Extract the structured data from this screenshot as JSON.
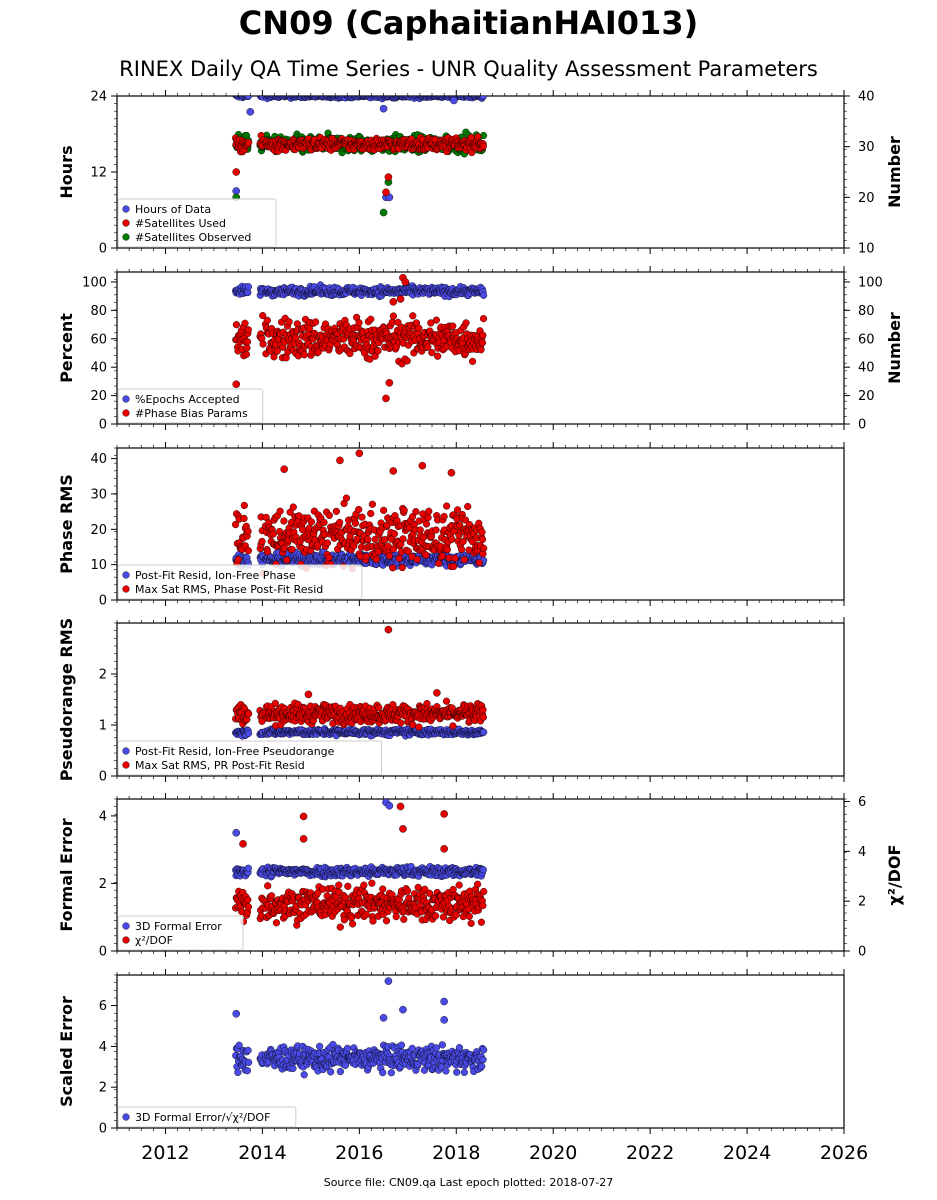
{
  "title": "CN09 (CaphaitianHAI013)",
  "subtitle": "RINEX Daily QA Time Series - UNR Quality Assessment Parameters",
  "footer": "Source file: CN09.qa Last epoch plotted: 2018-07-27",
  "colors": {
    "blue": "#4a4ae6",
    "red": "#e60000",
    "green": "#007a00",
    "edge": "#000000"
  },
  "chart_data": {
    "type": "scatter",
    "x_axis": {
      "range": [
        2011.0,
        2026.0
      ],
      "tick_labels": [
        "2012",
        "2014",
        "2016",
        "2018",
        "2020",
        "2022",
        "2024",
        "2026"
      ],
      "data_start": 2013.45,
      "data_end": 2018.57
    },
    "panels": [
      {
        "id": "hours",
        "ylabel": "Hours",
        "ylim": [
          0,
          24
        ],
        "yticks": [
          "0",
          "12",
          "24"
        ],
        "ylabel_right": "Number",
        "ylim_right": [
          10,
          40
        ],
        "yticks_right": [
          "10",
          "20",
          "30",
          "40"
        ],
        "legend": [
          "Hours of Data",
          "#Satellites Used",
          "#Satellites Observed"
        ],
        "series": [
          {
            "name": "Hours of Data",
            "color": "blue",
            "axis": "left",
            "mean": 24.0,
            "spread": 0.15,
            "outliers": [
              [
                2013.46,
                9.0
              ],
              [
                2013.75,
                21.5
              ],
              [
                2016.5,
                22.0
              ],
              [
                2016.55,
                8.0
              ],
              [
                2016.62,
                8.0
              ],
              [
                2017.95,
                23.3
              ]
            ]
          },
          {
            "name": "#Satellites Observed",
            "color": "green",
            "axis": "right",
            "mean": 30.5,
            "spread": 0.8,
            "outliers": [
              [
                2013.46,
                20.0
              ],
              [
                2016.5,
                17.0
              ],
              [
                2016.6,
                23.0
              ]
            ]
          },
          {
            "name": "#Satellites Used",
            "color": "red",
            "axis": "right",
            "mean": 30.5,
            "spread": 0.6,
            "outliers": [
              [
                2013.46,
                25.0
              ],
              [
                2016.55,
                21.0
              ],
              [
                2016.6,
                24.0
              ]
            ]
          }
        ]
      },
      {
        "id": "percent",
        "ylabel": "Percent",
        "ylim": [
          0,
          107
        ],
        "yticks": [
          "0",
          "20",
          "40",
          "60",
          "80",
          "100"
        ],
        "ylabel_right": "Number",
        "ylim_right": [
          0,
          107
        ],
        "yticks_right": [
          "0",
          "20",
          "40",
          "60",
          "80",
          "100"
        ],
        "legend": [
          "%Epochs Accepted",
          "#Phase Bias Params"
        ],
        "series": [
          {
            "name": "%Epochs Accepted",
            "color": "blue",
            "axis": "left",
            "mean": 93.5,
            "spread": 1.5,
            "outliers": []
          },
          {
            "name": "#Phase Bias Params",
            "color": "red",
            "axis": "right",
            "mean": 60,
            "spread": 7,
            "outliers": [
              [
                2013.46,
                28.0
              ],
              [
                2016.55,
                18.0
              ],
              [
                2016.62,
                29.0
              ],
              [
                2016.9,
                103.0
              ],
              [
                2016.95,
                100.0
              ],
              [
                2016.7,
                86.0
              ],
              [
                2016.85,
                88.0
              ]
            ]
          }
        ]
      },
      {
        "id": "phase",
        "ylabel": "Phase RMS",
        "ylim": [
          0,
          43
        ],
        "yticks": [
          "0",
          "10",
          "20",
          "30",
          "40"
        ],
        "legend": [
          "Post-Fit Resid, Ion-Free Phase",
          "Max Sat RMS, Phase Post-Fit Resid"
        ],
        "series": [
          {
            "name": "Post-Fit Resid, Ion-Free Phase",
            "color": "blue",
            "axis": "left",
            "mean": 11.5,
            "spread": 0.8,
            "outliers": []
          },
          {
            "name": "Max Sat RMS, Phase Post-Fit Resid",
            "color": "red",
            "axis": "left",
            "mean": 18,
            "spread": 4,
            "outliers": [
              [
                2015.6,
                39.5
              ],
              [
                2016.0,
                41.5
              ],
              [
                2014.45,
                37.0
              ],
              [
                2017.3,
                38.0
              ],
              [
                2016.7,
                36.5
              ],
              [
                2017.9,
                36.0
              ]
            ]
          }
        ]
      },
      {
        "id": "pseudorange",
        "ylabel": "Pseudorange RMS",
        "ylim": [
          0,
          3.0
        ],
        "yticks": [
          "0",
          "1",
          "2"
        ],
        "legend": [
          "Post-Fit Resid, Ion-Free Pseudorange",
          "Max Sat RMS, PR Post-Fit Resid"
        ],
        "series": [
          {
            "name": "Post-Fit Resid, Ion-Free Pseudorange",
            "color": "blue",
            "axis": "left",
            "mean": 0.86,
            "spread": 0.03,
            "outliers": []
          },
          {
            "name": "Max Sat RMS, PR Post-Fit Resid",
            "color": "red",
            "axis": "left",
            "mean": 1.22,
            "spread": 0.09,
            "outliers": [
              [
                2016.6,
                2.87
              ],
              [
                2017.6,
                1.63
              ],
              [
                2014.95,
                1.6
              ]
            ]
          }
        ]
      },
      {
        "id": "formal",
        "ylabel": "Formal Error",
        "ylim": [
          0,
          4.5
        ],
        "yticks": [
          "0",
          "2",
          "4"
        ],
        "ylabel_right": "χ²/DOF",
        "ylim_right": [
          0,
          6.1
        ],
        "yticks_right": [
          "0",
          "2",
          "4",
          "6"
        ],
        "legend": [
          "3D Formal Error",
          "χ²/DOF"
        ],
        "series": [
          {
            "name": "3D Formal Error",
            "color": "blue",
            "axis": "left",
            "mean": 2.35,
            "spread": 0.07,
            "outliers": [
              [
                2013.46,
                3.5
              ],
              [
                2016.55,
                4.4
              ],
              [
                2016.62,
                4.3
              ]
            ]
          },
          {
            "name": "χ²/DOF",
            "color": "red",
            "axis": "right",
            "mean": 1.9,
            "spread": 0.35,
            "outliers": [
              [
                2014.85,
                5.4
              ],
              [
                2016.85,
                5.8
              ],
              [
                2017.75,
                5.5
              ],
              [
                2013.6,
                4.3
              ],
              [
                2016.9,
                4.9
              ],
              [
                2017.75,
                4.1
              ],
              [
                2014.85,
                4.5
              ]
            ]
          }
        ]
      },
      {
        "id": "scaled",
        "ylabel": "Scaled Error",
        "ylim": [
          0,
          7.5
        ],
        "yticks": [
          "0",
          "2",
          "4",
          "6"
        ],
        "legend": [
          "3D Formal Error/√χ²/DOF"
        ],
        "series": [
          {
            "name": "3D Formal Error/√χ²/DOF",
            "color": "blue",
            "axis": "left",
            "mean": 3.4,
            "spread": 0.3,
            "outliers": [
              [
                2016.6,
                7.2
              ],
              [
                2016.9,
                5.8
              ],
              [
                2017.75,
                6.2
              ],
              [
                2013.46,
                5.6
              ],
              [
                2017.75,
                5.3
              ],
              [
                2016.5,
                5.4
              ]
            ]
          }
        ]
      }
    ]
  }
}
